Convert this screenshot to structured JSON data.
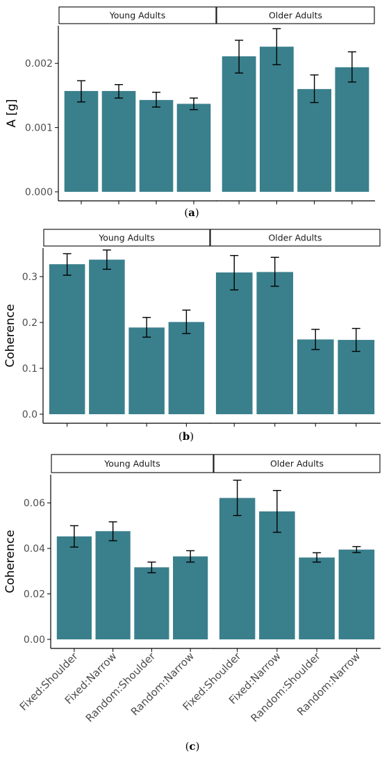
{
  "colors": {
    "bar": "#3a7f8c",
    "error_bar": "#000000",
    "axis": "#000000",
    "tick_text": "#4d4d4d",
    "strip_border": "#1a1a1a"
  },
  "categories": [
    "Fixed:Shoulder",
    "Fixed:Narrow",
    "Random:Shoulder",
    "Random:Narrow"
  ],
  "captions": [
    "a",
    "b",
    "c"
  ],
  "chart_data": [
    {
      "type": "bar",
      "caption": "a",
      "ylabel": "A [g]",
      "ylim": [
        0,
        0.0025
      ],
      "yticks": [
        0,
        0.001,
        0.002
      ],
      "ytick_labels": [
        "0.000",
        "0.001",
        "0.002"
      ],
      "categories": [
        "Fixed:Shoulder",
        "Fixed:Narrow",
        "Random:Shoulder",
        "Random:Narrow"
      ],
      "facets": [
        {
          "name": "Young Adults",
          "values": [
            0.00157,
            0.00157,
            0.00143,
            0.00137
          ],
          "error_low": [
            0.0014,
            0.00146,
            0.00132,
            0.00128
          ],
          "error_high": [
            0.00173,
            0.00167,
            0.00155,
            0.00146
          ]
        },
        {
          "name": "Older Adults",
          "values": [
            0.00211,
            0.00226,
            0.0016,
            0.00194
          ],
          "error_low": [
            0.00185,
            0.00198,
            0.00139,
            0.00171
          ],
          "error_high": [
            0.00236,
            0.00254,
            0.00182,
            0.00218
          ]
        }
      ]
    },
    {
      "type": "bar",
      "caption": "b",
      "ylabel": "Coherence",
      "ylim": [
        0,
        0.35
      ],
      "yticks": [
        0,
        0.1,
        0.2,
        0.3
      ],
      "ytick_labels": [
        "0.0",
        "0.1",
        "0.2",
        "0.3"
      ],
      "categories": [
        "Fixed:Shoulder",
        "Fixed:Narrow",
        "Random:Shoulder",
        "Random:Narrow"
      ],
      "facets": [
        {
          "name": "Young Adults",
          "values": [
            0.327,
            0.337,
            0.189,
            0.201
          ],
          "error_low": [
            0.303,
            0.316,
            0.168,
            0.176
          ],
          "error_high": [
            0.35,
            0.358,
            0.211,
            0.227
          ]
        },
        {
          "name": "Older Adults",
          "values": [
            0.309,
            0.31,
            0.163,
            0.162
          ],
          "error_low": [
            0.271,
            0.279,
            0.141,
            0.137
          ],
          "error_high": [
            0.346,
            0.342,
            0.185,
            0.187
          ]
        }
      ]
    },
    {
      "type": "bar",
      "caption": "c",
      "ylabel": "Coherence",
      "ylim": [
        0,
        0.07
      ],
      "yticks": [
        0,
        0.02,
        0.04,
        0.06
      ],
      "ytick_labels": [
        "0.00",
        "0.02",
        "0.04",
        "0.06"
      ],
      "categories": [
        "Fixed:Shoulder",
        "Fixed:Narrow",
        "Random:Shoulder",
        "Random:Narrow"
      ],
      "facets": [
        {
          "name": "Young Adults",
          "values": [
            0.0453,
            0.0476,
            0.0317,
            0.0365
          ],
          "error_low": [
            0.0406,
            0.0434,
            0.0293,
            0.034
          ],
          "error_high": [
            0.05,
            0.0517,
            0.034,
            0.039
          ]
        },
        {
          "name": "Older Adults",
          "values": [
            0.0622,
            0.0563,
            0.036,
            0.0395
          ],
          "error_low": [
            0.0545,
            0.0471,
            0.034,
            0.0382
          ],
          "error_high": [
            0.07,
            0.0655,
            0.0381,
            0.0408
          ]
        }
      ]
    }
  ]
}
